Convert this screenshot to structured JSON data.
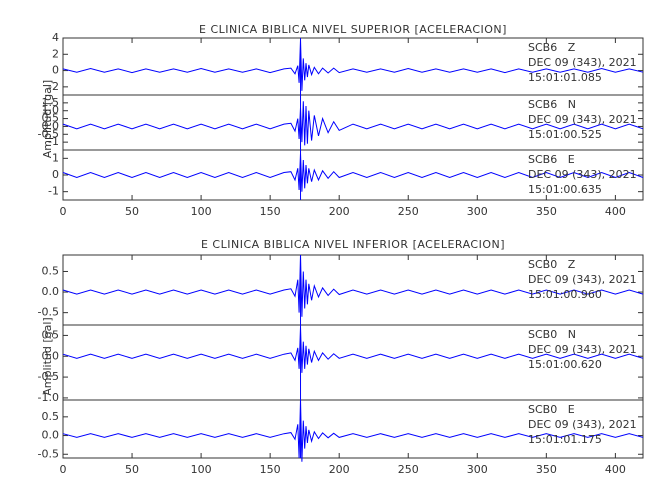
{
  "chart_data": [
    {
      "type": "line",
      "title": "E CLINICA BIBLICA NIVEL SUPERIOR [ACELERACION]",
      "ylabel": "Amplitud [gal]",
      "x": [
        0,
        10,
        20,
        30,
        40,
        50,
        60,
        70,
        80,
        90,
        100,
        110,
        120,
        130,
        140,
        150,
        160,
        165,
        168,
        170,
        171,
        172,
        173,
        174,
        175,
        176,
        177,
        178,
        180,
        182,
        185,
        188,
        192,
        196,
        200,
        210,
        220,
        230,
        240,
        250,
        260,
        270,
        280,
        290,
        300,
        310,
        320,
        330,
        340,
        350,
        360,
        370,
        380,
        390,
        400,
        410,
        420
      ],
      "xlim": [
        0,
        420
      ],
      "xticks": [
        0,
        50,
        100,
        150,
        200,
        250,
        300,
        350,
        400
      ],
      "pick_x": 172,
      "series": [
        {
          "name": "SCB6   Z",
          "date": "DEC 09 (343), 2021",
          "time": "15:01:01.085",
          "color": "#0000ff",
          "ylim": [
            -3,
            4
          ],
          "yticks": [
            -2,
            0,
            2,
            4
          ],
          "values": [
            0.2,
            -0.2,
            0.25,
            -0.2,
            0.2,
            -0.25,
            0.2,
            -0.2,
            0.2,
            -0.2,
            0.25,
            -0.2,
            0.2,
            -0.2,
            0.2,
            -0.25,
            0.2,
            0.3,
            -0.4,
            0.6,
            -1.5,
            3.8,
            -2.5,
            1.5,
            -1.2,
            0.9,
            -0.8,
            0.7,
            -0.5,
            0.4,
            -0.4,
            0.3,
            -0.3,
            0.3,
            -0.25,
            0.2,
            -0.2,
            0.2,
            -0.2,
            0.25,
            -0.2,
            0.2,
            -0.2,
            0.2,
            -0.2,
            0.2,
            -0.25,
            0.2,
            -0.2,
            0.2,
            -0.2,
            0.2,
            -0.2,
            0.25,
            -0.2,
            0.2,
            -0.2
          ]
        },
        {
          "name": "SCB6   N",
          "date": "DEC 09 (343), 2021",
          "time": "15:01:00.525",
          "color": "#0000ff",
          "ylim": [
            -1.5,
            2
          ],
          "yticks": [
            -1,
            -0.5,
            {
              "value": 0,
              "label": "0.0"
            },
            0.5,
            {
              "value": 1,
              "label": "1.0"
            },
            1.5
          ],
          "values": [
            0.15,
            -0.15,
            0.15,
            -0.15,
            0.15,
            -0.15,
            0.15,
            -0.15,
            0.15,
            -0.15,
            0.15,
            -0.15,
            0.15,
            -0.15,
            0.15,
            -0.15,
            0.15,
            0.2,
            -0.3,
            0.5,
            -0.8,
            1.2,
            -1.0,
            1.6,
            -1.2,
            1.3,
            -1.1,
            1.0,
            -0.9,
            0.7,
            -0.6,
            0.5,
            -0.4,
            0.3,
            -0.25,
            0.15,
            -0.15,
            0.15,
            -0.15,
            0.15,
            -0.15,
            0.15,
            -0.15,
            0.15,
            -0.15,
            0.15,
            -0.15,
            0.15,
            -0.15,
            0.15,
            -0.15,
            0.15,
            -0.15,
            0.15,
            -0.15,
            0.15,
            -0.15
          ]
        },
        {
          "name": "SCB6   E",
          "date": "DEC 09 (343), 2021",
          "time": "15:01:00.635",
          "color": "#0000ff",
          "ylim": [
            -1.5,
            1.5
          ],
          "yticks": [
            -1,
            0,
            1
          ],
          "values": [
            0.15,
            -0.15,
            0.15,
            -0.15,
            0.15,
            -0.15,
            0.15,
            -0.15,
            0.15,
            -0.15,
            0.15,
            -0.15,
            0.15,
            -0.15,
            0.15,
            -0.15,
            0.15,
            0.2,
            -0.3,
            0.4,
            -0.9,
            1.3,
            -1.0,
            0.9,
            -0.8,
            0.6,
            -0.5,
            0.4,
            -0.4,
            0.3,
            -0.3,
            0.25,
            -0.2,
            0.2,
            -0.15,
            0.15,
            -0.15,
            0.15,
            -0.15,
            0.15,
            -0.15,
            0.15,
            -0.15,
            0.15,
            -0.15,
            0.15,
            -0.15,
            0.15,
            -0.15,
            0.15,
            -0.15,
            0.15,
            -0.15,
            0.15,
            -0.15,
            0.15,
            -0.15
          ]
        }
      ]
    },
    {
      "type": "line",
      "title": "E CLINICA BIBLICA NIVEL INFERIOR [ACELERACION]",
      "ylabel": "Amplitud [gal]",
      "x": [
        0,
        10,
        20,
        30,
        40,
        50,
        60,
        70,
        80,
        90,
        100,
        110,
        120,
        130,
        140,
        150,
        160,
        165,
        168,
        170,
        171,
        172,
        173,
        174,
        175,
        176,
        177,
        178,
        180,
        182,
        185,
        188,
        192,
        196,
        200,
        210,
        220,
        230,
        240,
        250,
        260,
        270,
        280,
        290,
        300,
        310,
        320,
        330,
        340,
        350,
        360,
        370,
        380,
        390,
        400,
        410,
        420
      ],
      "xlim": [
        0,
        420
      ],
      "xticks": [
        0,
        50,
        100,
        150,
        200,
        250,
        300,
        350,
        400
      ],
      "pick_x": 172,
      "series": [
        {
          "name": "SCB0   Z",
          "date": "DEC 09 (343), 2021",
          "time": "15:01:00.960",
          "color": "#0000ff",
          "ylim": [
            -0.8,
            0.9
          ],
          "yticks": [
            -0.5,
            {
              "value": 0,
              "label": "0.0"
            },
            0.5
          ],
          "values": [
            0.05,
            -0.05,
            0.05,
            -0.05,
            0.05,
            -0.05,
            0.05,
            -0.05,
            0.05,
            -0.05,
            0.05,
            -0.05,
            0.05,
            -0.05,
            0.05,
            -0.05,
            0.05,
            0.08,
            -0.1,
            0.3,
            -0.5,
            0.9,
            -0.6,
            0.5,
            -0.4,
            0.3,
            -0.3,
            0.2,
            -0.2,
            0.15,
            -0.12,
            0.1,
            -0.08,
            0.07,
            -0.06,
            0.05,
            -0.05,
            0.05,
            -0.05,
            0.05,
            -0.05,
            0.05,
            -0.05,
            0.05,
            -0.05,
            0.05,
            -0.05,
            0.05,
            -0.05,
            0.05,
            -0.05,
            0.05,
            -0.05,
            0.05,
            -0.05,
            0.05,
            -0.05
          ]
        },
        {
          "name": "SCB0   N",
          "date": "DEC 09 (343), 2021",
          "time": "15:01:00.620",
          "color": "#0000ff",
          "ylim": [
            -1.05,
            0.75
          ],
          "yticks": [
            {
              "value": -1,
              "label": "-1.0"
            },
            -0.5,
            {
              "value": 0,
              "label": "0.0"
            },
            0.5
          ],
          "values": [
            0.05,
            -0.05,
            0.05,
            -0.05,
            0.05,
            -0.05,
            0.05,
            -0.05,
            0.05,
            -0.05,
            0.05,
            -0.05,
            0.05,
            -0.05,
            0.05,
            -0.05,
            0.05,
            0.08,
            -0.1,
            0.2,
            -0.3,
            0.7,
            -0.4,
            0.35,
            -0.3,
            0.25,
            -0.2,
            0.18,
            -0.15,
            0.12,
            -0.1,
            0.08,
            -0.07,
            0.06,
            -0.05,
            0.05,
            -0.05,
            0.05,
            -0.05,
            0.05,
            -0.05,
            0.05,
            -0.05,
            0.05,
            -0.05,
            0.05,
            -0.05,
            0.05,
            -0.05,
            0.05,
            -0.05,
            0.05,
            -0.05,
            0.05,
            -0.05,
            0.05,
            -0.05
          ]
        },
        {
          "name": "SCB0   E",
          "date": "DEC 09 (343), 2021",
          "time": "15:01:01.175",
          "color": "#0000ff",
          "ylim": [
            -0.6,
            0.95
          ],
          "yticks": [
            -0.5,
            {
              "value": 0,
              "label": "0.0"
            },
            0.5
          ],
          "values": [
            0.05,
            -0.05,
            0.05,
            -0.05,
            0.05,
            -0.05,
            0.05,
            -0.05,
            0.05,
            -0.05,
            0.05,
            -0.05,
            0.05,
            -0.05,
            0.05,
            -0.05,
            0.05,
            0.08,
            -0.1,
            0.3,
            -0.6,
            0.95,
            -0.7,
            0.4,
            -0.35,
            0.25,
            -0.2,
            0.15,
            -0.15,
            0.1,
            -0.08,
            0.07,
            -0.06,
            0.06,
            -0.05,
            0.05,
            -0.05,
            0.05,
            -0.05,
            0.05,
            -0.05,
            0.05,
            -0.05,
            0.05,
            -0.05,
            0.05,
            -0.05,
            0.05,
            -0.05,
            0.05,
            -0.05,
            0.05,
            -0.05,
            0.05,
            -0.05,
            0.05,
            -0.05
          ]
        }
      ]
    }
  ]
}
